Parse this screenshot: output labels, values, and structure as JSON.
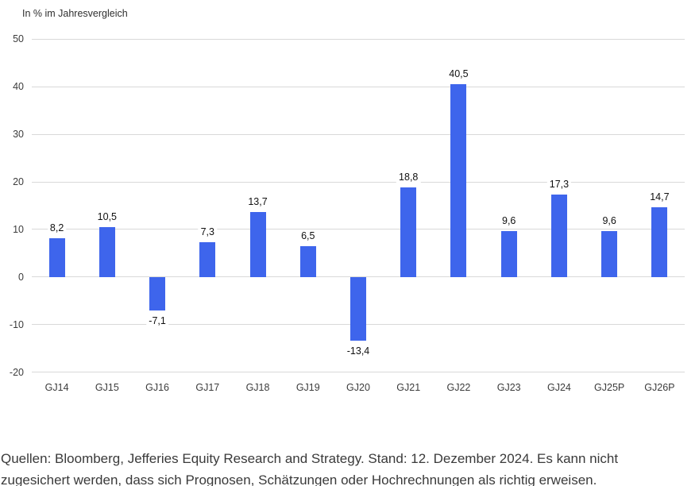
{
  "chart_data": {
    "type": "bar",
    "title": "In % im Jahresvergleich",
    "categories": [
      "GJ14",
      "GJ15",
      "GJ16",
      "GJ17",
      "GJ18",
      "GJ19",
      "GJ20",
      "GJ21",
      "GJ22",
      "GJ23",
      "GJ24",
      "GJ25P",
      "GJ26P"
    ],
    "values": [
      8.2,
      10.5,
      -7.1,
      7.3,
      13.7,
      6.5,
      -13.4,
      18.8,
      40.5,
      9.6,
      17.3,
      9.6,
      14.7
    ],
    "value_labels": [
      "8,2",
      "10,5",
      "-7,1",
      "7,3",
      "13,7",
      "6,5",
      "-13,4",
      "18,8",
      "40,5",
      "9,6",
      "17,3",
      "9,6",
      "14,7"
    ],
    "xlabel": "",
    "ylabel": "In % im Jahresvergleich",
    "yticks": [
      50,
      40,
      30,
      20,
      10,
      0,
      -10,
      -20
    ],
    "ylim": [
      -20,
      50
    ],
    "grid": true,
    "legend": false,
    "bar_color": "#3e65ec",
    "grid_color": "#d9d9d9",
    "tick_color": "#3c3c3c",
    "value_label_color": "#111111"
  },
  "footer": {
    "lines": [
      "Quellen: Bloomberg, Jefferies Equity Research and Strategy. Stand: 12. Dezember 2024. Es kann nicht",
      "zugesichert werden, dass sich Prognosen, Schätzungen oder Hochrechnungen als richtig erweisen."
    ]
  }
}
